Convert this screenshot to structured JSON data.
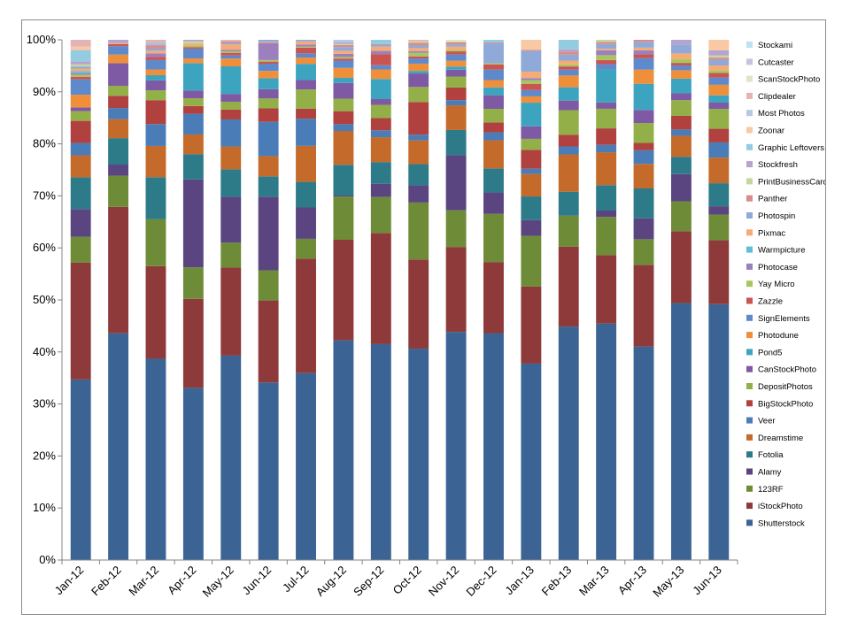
{
  "chart_data": {
    "type": "bar",
    "stacked": "percent",
    "categories": [
      "Jan-12",
      "Feb-12",
      "Mar-12",
      "Apr-12",
      "May-12",
      "Jun-12",
      "Jul-12",
      "Aug-12",
      "Sep-12",
      "Oct-12",
      "Nov-12",
      "Dec-12",
      "Jan-13",
      "Feb-13",
      "Mar-13",
      "Apr-13",
      "May-13",
      "Jun-13"
    ],
    "ylim": [
      0,
      100
    ],
    "y_ticks": [
      "0%",
      "10%",
      "20%",
      "30%",
      "40%",
      "50%",
      "60%",
      "70%",
      "80%",
      "90%",
      "100%"
    ],
    "grid": false,
    "legend_position": "right",
    "series": [
      {
        "name": "Shutterstock",
        "color": "#3B6494",
        "values": [
          35.2,
          42.9,
          38.7,
          33.3,
          39.3,
          34.2,
          35.8,
          42.2,
          40.8,
          40.8,
          43.5,
          43.4,
          37.5,
          43.8,
          44.6,
          40.8,
          49.0,
          48.9
        ]
      },
      {
        "name": "iStockPhoto",
        "color": "#8E3A3A",
        "values": [
          22.8,
          23.9,
          17.8,
          17.2,
          16.9,
          15.8,
          21.9,
          19.3,
          21.0,
          17.2,
          16.2,
          13.6,
          14.7,
          15.0,
          12.9,
          15.6,
          13.7,
          12.2
        ]
      },
      {
        "name": "123RF",
        "color": "#6E8C38",
        "values": [
          5.0,
          5.9,
          9.0,
          6.1,
          4.8,
          5.8,
          3.8,
          8.3,
          6.8,
          11.0,
          7.0,
          9.2,
          9.7,
          5.8,
          7.2,
          4.9,
          5.7,
          4.9
        ]
      },
      {
        "name": "Alamy",
        "color": "#5A4581",
        "values": [
          5.4,
          2.1,
          0.0,
          17.0,
          8.8,
          14.2,
          6.0,
          0.2,
          2.5,
          3.3,
          10.5,
          4.1,
          3.0,
          0.0,
          1.2,
          4.0,
          5.2,
          1.6
        ]
      },
      {
        "name": "Fotolia",
        "color": "#2D7B88",
        "values": [
          6.2,
          5.0,
          8.1,
          4.9,
          5.3,
          3.9,
          4.9,
          5.9,
          4.1,
          4.1,
          4.8,
          4.6,
          4.5,
          4.5,
          4.8,
          5.7,
          3.3,
          4.4
        ]
      },
      {
        "name": "Dreamstime",
        "color": "#C46B2B",
        "values": [
          4.3,
          3.6,
          6.0,
          3.8,
          4.4,
          3.9,
          6.9,
          6.5,
          4.7,
          4.6,
          4.7,
          5.4,
          4.3,
          7.0,
          6.2,
          4.7,
          4.0,
          4.9
        ]
      },
      {
        "name": "Veer",
        "color": "#4A7CB8",
        "values": [
          2.4,
          2.1,
          4.2,
          4.0,
          5.2,
          6.6,
          5.2,
          1.3,
          1.3,
          1.1,
          1.0,
          1.5,
          1.0,
          1.5,
          1.4,
          2.6,
          1.2,
          2.9
        ]
      },
      {
        "name": "BigStockPhoto",
        "color": "#B0413E",
        "values": [
          4.3,
          2.3,
          4.6,
          1.5,
          1.9,
          2.6,
          1.9,
          2.5,
          2.3,
          6.3,
          2.4,
          1.9,
          3.6,
          2.2,
          3.1,
          1.4,
          2.6,
          2.6
        ]
      },
      {
        "name": "DepositPhotos",
        "color": "#93B048",
        "values": [
          1.9,
          1.9,
          1.9,
          1.5,
          1.5,
          1.9,
          3.7,
          2.4,
          2.5,
          2.9,
          2.1,
          2.6,
          2.1,
          4.6,
          3.7,
          3.8,
          3.0,
          3.8
        ]
      },
      {
        "name": "CanStockPhoto",
        "color": "#7D5AA3",
        "values": [
          0.7,
          4.3,
          1.9,
          1.5,
          1.5,
          1.8,
          1.8,
          3.0,
          1.1,
          2.6,
          1.3,
          2.6,
          2.4,
          1.8,
          1.2,
          2.5,
          1.3,
          1.2
        ]
      },
      {
        "name": "Pond5",
        "color": "#3DA4C0",
        "values": [
          0.0,
          0.0,
          1.0,
          5.3,
          5.3,
          2.1,
          3.1,
          1.0,
          3.8,
          0.5,
          0.6,
          1.5,
          4.5,
          2.5,
          6.2,
          5.0,
          2.8,
          1.4
        ]
      },
      {
        "name": "Photodune",
        "color": "#F08F3A",
        "values": [
          2.5,
          1.6,
          1.1,
          0.9,
          1.5,
          1.4,
          1.2,
          1.9,
          1.8,
          1.4,
          1.1,
          1.4,
          1.2,
          2.2,
          0.0,
          2.7,
          1.6,
          2.0
        ]
      },
      {
        "name": "SignElements",
        "color": "#5E8ACB",
        "values": [
          3.0,
          1.6,
          1.8,
          1.9,
          0.6,
          1.4,
          0.8,
          1.4,
          0.8,
          1.0,
          1.2,
          2.0,
          1.2,
          1.1,
          1.0,
          2.2,
          0.9,
          1.4
        ]
      },
      {
        "name": "Zazzle",
        "color": "#C95553",
        "values": [
          0.5,
          0.4,
          0.6,
          0.3,
          0.5,
          0.4,
          1.1,
          0.4,
          2.1,
          0.4,
          0.6,
          1.0,
          1.2,
          0.6,
          0.8,
          0.7,
          0.5,
          0.9
        ]
      },
      {
        "name": "Yay Micro",
        "color": "#A7C65E",
        "values": [
          0.4,
          0.0,
          0.0,
          0.3,
          0.3,
          0.3,
          0.2,
          0.3,
          0.0,
          0.7,
          0.3,
          0.2,
          0.7,
          0.4,
          0.9,
          0.0,
          0.7,
          0.5
        ]
      },
      {
        "name": "Photocase",
        "color": "#9C80BE",
        "values": [
          0.3,
          0.0,
          0.7,
          0.0,
          0.3,
          3.3,
          0.4,
          0.6,
          0.6,
          0.3,
          0.0,
          0.0,
          0.4,
          0.0,
          0.9,
          0.8,
          0.0,
          0.0
        ]
      },
      {
        "name": "Warmpicture",
        "color": "#5EBFD6",
        "values": [
          0.4,
          0.0,
          0.0,
          0.0,
          0.0,
          0.0,
          0.0,
          0.0,
          0.0,
          0.0,
          0.0,
          0.0,
          0.0,
          0.0,
          0.0,
          0.0,
          0.0,
          0.0
        ]
      },
      {
        "name": "Pixmac",
        "color": "#F6AB74",
        "values": [
          0.5,
          0.2,
          0.5,
          0.4,
          1.0,
          0.2,
          0.6,
          0.6,
          0.8,
          0.6,
          0.6,
          0.0,
          1.2,
          0.7,
          0.3,
          0.5,
          1.1,
          0.9
        ]
      },
      {
        "name": "Photospin",
        "color": "#8FAAD9",
        "values": [
          0.4,
          0.0,
          0.4,
          0.0,
          0.3,
          0.4,
          0.3,
          0.7,
          0.3,
          0.5,
          0.4,
          3.8,
          4.0,
          1.1,
          0.9,
          1.1,
          1.7,
          1.1
        ]
      },
      {
        "name": "Panther",
        "color": "#D88C8B",
        "values": [
          0.0,
          0.0,
          0.6,
          0.0,
          0.3,
          0.0,
          0.0,
          0.4,
          0.2,
          0.5,
          0.4,
          0.2,
          0.2,
          0.6,
          0.4,
          0.4,
          0.0,
          0.4
        ]
      },
      {
        "name": "PrintBusinessCards",
        "color": "#C5D89B",
        "values": [
          0.4,
          0.0,
          0.0,
          0.4,
          0.0,
          0.0,
          0.0,
          0.2,
          0.0,
          0.3,
          0.2,
          0.0,
          0.0,
          0.0,
          0.4,
          0.0,
          0.0,
          0.4
        ]
      },
      {
        "name": "Stockfresh",
        "color": "#B4A4CE",
        "values": [
          0.6,
          0.6,
          0.2,
          0.3,
          0.0,
          0.0,
          0.0,
          0.3,
          0.0,
          0.0,
          0.0,
          0.0,
          0.0,
          0.4,
          0.0,
          0.0,
          0.9,
          1.0
        ]
      },
      {
        "name": "Graphic Leftovers",
        "color": "#93CCE0",
        "values": [
          2.2,
          0.0,
          0.3,
          0.0,
          0.0,
          0.0,
          0.0,
          0.0,
          0.8,
          0.0,
          0.0,
          0.5,
          0.0,
          1.8,
          0.0,
          0.0,
          0.0,
          0.0
        ]
      },
      {
        "name": "Zoonar",
        "color": "#F9C8A4",
        "values": [
          0.7,
          0.0,
          0.0,
          0.0,
          0.0,
          0.0,
          0.0,
          0.0,
          0.0,
          0.0,
          0.0,
          0.0,
          1.9,
          0.0,
          0.0,
          0.0,
          0.0,
          2.0
        ]
      },
      {
        "name": "Most Photos",
        "color": "#B5C8E5",
        "values": [
          0.0,
          0.0,
          0.0,
          0.0,
          0.0,
          0.0,
          0.0,
          0.5,
          0.0,
          0.0,
          0.0,
          0.0,
          0.0,
          0.0,
          0.0,
          0.0,
          0.0,
          0.0
        ]
      },
      {
        "name": "Clipdealer",
        "color": "#E3B4B3",
        "values": [
          1.3,
          0.0,
          0.6,
          0.0,
          0.3,
          0.0,
          0.0,
          0.0,
          0.0,
          0.3,
          0.0,
          0.0,
          0.0,
          0.0,
          0.0,
          0.0,
          0.0,
          0.0
        ]
      },
      {
        "name": "ScanStockPhoto",
        "color": "#DCE7C3",
        "values": [
          0.0,
          0.0,
          0.0,
          0.0,
          0.0,
          0.0,
          0.0,
          0.0,
          0.0,
          0.0,
          0.3,
          0.0,
          0.0,
          0.0,
          0.0,
          0.0,
          0.0,
          0.0
        ]
      },
      {
        "name": "Cutcaster",
        "color": "#CBC1DD",
        "values": [
          0.0,
          0.0,
          0.0,
          0.0,
          0.0,
          0.0,
          0.0,
          0.0,
          0.0,
          0.0,
          0.0,
          0.0,
          0.0,
          0.0,
          0.0,
          0.0,
          0.0,
          0.0
        ]
      },
      {
        "name": "Stockami",
        "color": "#BFE2EF",
        "values": [
          0.0,
          0.0,
          0.0,
          0.0,
          0.0,
          0.0,
          0.0,
          0.0,
          0.0,
          0.0,
          0.0,
          0.0,
          0.0,
          0.0,
          0.0,
          0.0,
          0.0,
          0.0
        ]
      }
    ]
  }
}
